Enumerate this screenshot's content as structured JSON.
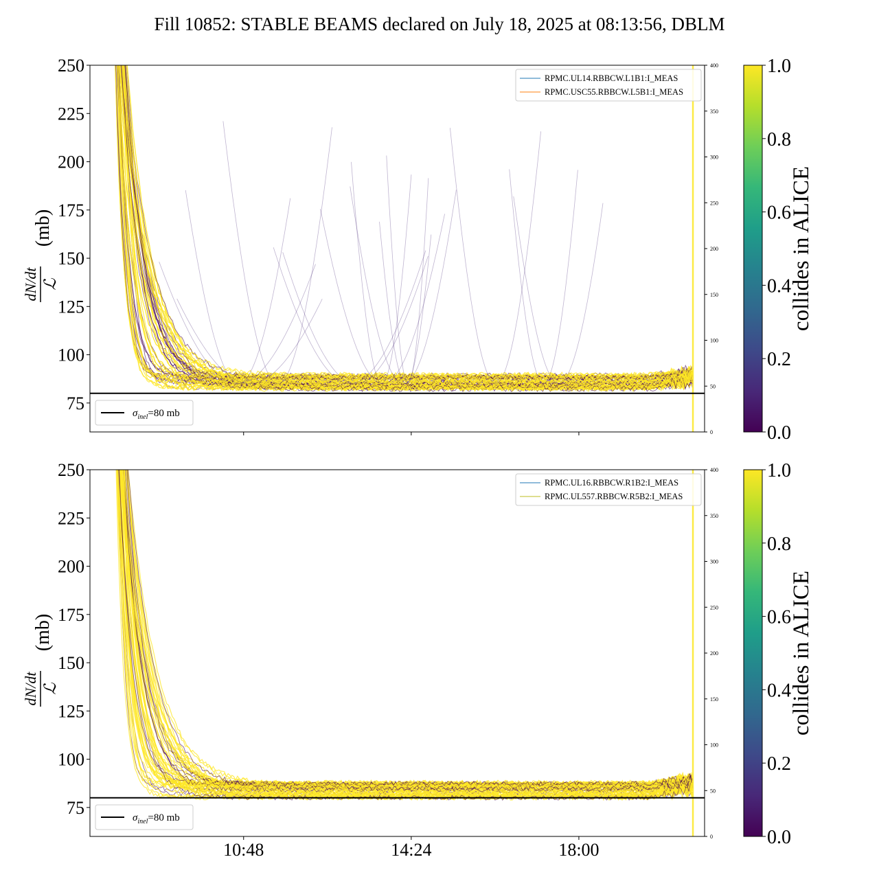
{
  "figure": {
    "title": "Fill 10852: STABLE BEAMS declared on July 18, 2025 at 08:13:56, DBLM"
  },
  "colors": {
    "viridis": [
      "#440154",
      "#482878",
      "#3e4989",
      "#31688e",
      "#26828e",
      "#1f9e89",
      "#35b779",
      "#6ece58",
      "#b5de2b",
      "#fde725"
    ],
    "blm_legend_colors": [
      "#1f77b4",
      "#ff7f0e",
      "#1f77b4",
      "#bcbd22"
    ],
    "reference_line": "#000000"
  },
  "chart_data": [
    {
      "type": "line",
      "panel": "top",
      "ylabel_numerator": "dN/dt",
      "ylabel_denominator": "ℒ",
      "ylabel_unit": "(mb)",
      "ylim": [
        60,
        250
      ],
      "yticks": [
        75,
        100,
        125,
        150,
        175,
        200,
        225,
        250
      ],
      "xlim_hours": [
        7.5,
        20.7
      ],
      "xticks": [
        "10:48",
        "14:24",
        "18:00"
      ],
      "xtick_hours": [
        10.8,
        14.4,
        18.0
      ],
      "y2lim": [
        0,
        400
      ],
      "y2ticks": [
        0,
        50,
        100,
        150,
        200,
        250,
        300,
        350,
        400
      ],
      "legend_upper": [
        "RPMC.UL14.RBBCW.L1B1:I_MEAS",
        "RPMC.USC55.RBBCW.L5B1:I_MEAS"
      ],
      "legend_lower": {
        "symbol": "σ",
        "subscript": "inel",
        "text": "=80 mb"
      },
      "reference_y": 80,
      "colorbar": {
        "label": "collides in ALICE",
        "ticks": [
          "0.0",
          "0.2",
          "0.4",
          "0.6",
          "0.8",
          "1.0"
        ],
        "range": [
          0,
          1
        ]
      },
      "traces_summary": {
        "start_hour": 8.0,
        "end_hour": 20.45,
        "initial_value": 250,
        "settled_value": 85,
        "late_rise_value": 100
      }
    },
    {
      "type": "line",
      "panel": "bottom",
      "ylabel_numerator": "dN/dt",
      "ylabel_denominator": "ℒ",
      "ylabel_unit": "(mb)",
      "ylim": [
        60,
        250
      ],
      "yticks": [
        75,
        100,
        125,
        150,
        175,
        200,
        225,
        250
      ],
      "xlim_hours": [
        7.5,
        20.7
      ],
      "xticks": [
        "10:48",
        "14:24",
        "18:00"
      ],
      "xtick_hours": [
        10.8,
        14.4,
        18.0
      ],
      "y2lim": [
        0,
        400
      ],
      "y2ticks": [
        0,
        50,
        100,
        150,
        200,
        250,
        300,
        350,
        400
      ],
      "legend_upper": [
        "RPMC.UL16.RBBCW.R1B2:I_MEAS",
        "RPMC.UL557.RBBCW.R5B2:I_MEAS"
      ],
      "legend_lower": {
        "symbol": "σ",
        "subscript": "inel",
        "text": "=80 mb"
      },
      "reference_y": 80,
      "colorbar": {
        "label": "collides in ALICE",
        "ticks": [
          "0.0",
          "0.2",
          "0.4",
          "0.6",
          "0.8",
          "1.0"
        ],
        "range": [
          0,
          1
        ]
      },
      "traces_summary": {
        "start_hour": 8.0,
        "end_hour": 20.45,
        "initial_value": 250,
        "settled_value": 83,
        "late_rise_value": 100
      }
    }
  ]
}
